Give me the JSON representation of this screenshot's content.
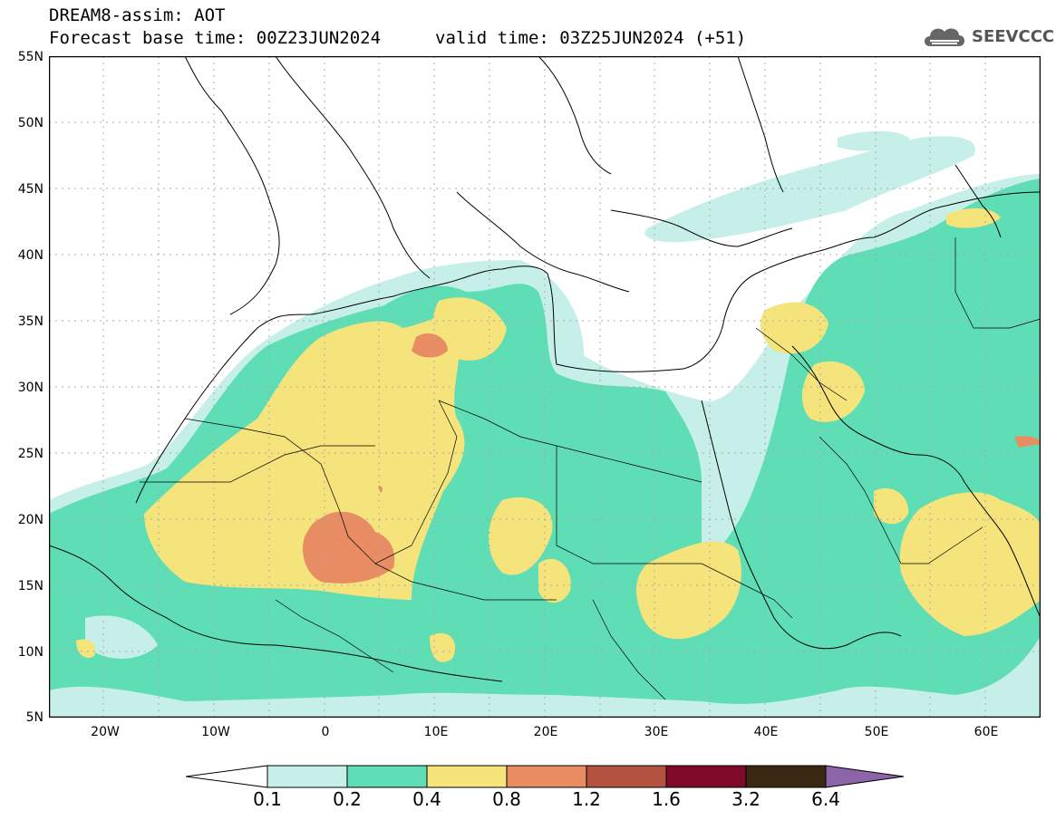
{
  "header": {
    "title": "DREAM8-assim: AOT",
    "base_time": "Forecast base time: 00Z23JUN2024",
    "valid_time": "valid time: 03Z25JUN2024 (+51)",
    "logo_text": "SEEVCCC"
  },
  "axes": {
    "lat_labels": [
      "55N",
      "50N",
      "45N",
      "40N",
      "35N",
      "30N",
      "25N",
      "20N",
      "15N",
      "10N",
      "5N"
    ],
    "lon_labels": [
      "20W",
      "10W",
      "0",
      "10E",
      "20E",
      "30E",
      "40E",
      "50E",
      "60E"
    ],
    "lat_range": [
      5,
      55
    ],
    "lon_range": [
      -25,
      65
    ],
    "grid": "dotted every 5 degrees"
  },
  "colorbar": {
    "labels": [
      "0.1",
      "0.2",
      "0.4",
      "0.8",
      "1.2",
      "1.6",
      "3.2",
      "6.4"
    ],
    "colors": [
      "#ffffff",
      "#c5efe8",
      "#5fddb4",
      "#f5e37c",
      "#e88c64",
      "#b2523f",
      "#7e0a2a",
      "#3a2813",
      "#8c64a8"
    ]
  },
  "colors": {
    "c01": "#c5efe8",
    "c02": "#5fddb4",
    "c04": "#f5e37c",
    "c08": "#e88c64",
    "c12": "#b2523f",
    "border": "#000000",
    "grid": "#aaaaaa"
  }
}
